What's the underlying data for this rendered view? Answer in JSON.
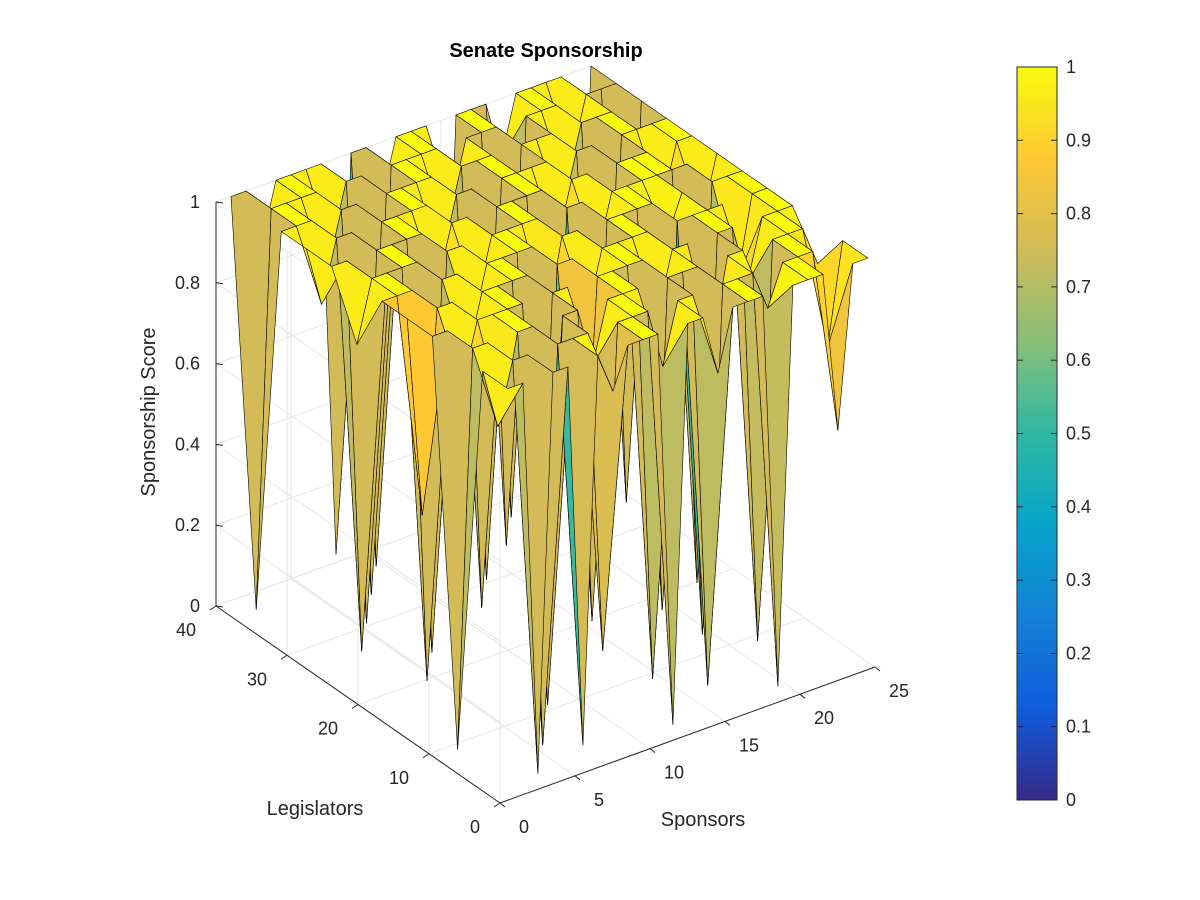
{
  "chart_data": {
    "type": "surface",
    "title": "Senate Sponsorship",
    "xlabel": "Sponsors",
    "ylabel": "Legislators",
    "zlabel": "Sponsorship Score",
    "xlim": [
      0,
      25
    ],
    "ylim": [
      0,
      40
    ],
    "zlim": [
      0,
      1
    ],
    "x_ticks": [
      "0",
      "5",
      "10",
      "15",
      "20",
      "25"
    ],
    "y_ticks": [
      "0",
      "10",
      "20",
      "30",
      "40"
    ],
    "z_ticks": [
      "0",
      "0.2",
      "0.4",
      "0.6",
      "0.8",
      "1"
    ],
    "colorbar_ticks": [
      "0",
      "0.1",
      "0.2",
      "0.3",
      "0.4",
      "0.5",
      "0.6",
      "0.7",
      "0.8",
      "0.9",
      "1"
    ],
    "colormap": "parula",
    "colormap_stops": [
      "#352a87",
      "#0f5cdd",
      "#1481d6",
      "#06a4ca",
      "#2eb7a4",
      "#87bf77",
      "#d1bb59",
      "#fec832",
      "#f9fb0e"
    ],
    "grid": true,
    "surface_rows": [
      [
        1,
        1,
        0.02,
        1,
        1,
        0.05,
        1,
        0.9,
        1,
        1,
        1,
        0.02,
        1,
        1,
        0.85,
        1,
        1,
        1,
        0.02,
        1,
        1,
        1,
        0.6,
        1,
        1
      ],
      [
        1,
        0.85,
        1,
        1,
        0.02,
        1,
        1,
        1,
        0.2,
        1,
        1,
        1,
        0.85,
        1,
        1,
        0.02,
        1,
        1,
        1,
        0.9,
        1,
        1,
        1,
        0.75,
        1
      ],
      [
        0.02,
        1,
        1,
        0.8,
        1,
        1,
        0.05,
        1,
        1,
        0.85,
        1,
        1,
        1,
        0.02,
        1,
        1,
        1,
        0.8,
        1,
        1,
        0.02,
        1,
        1,
        1,
        0.9
      ],
      [
        1,
        1,
        0.85,
        1,
        1,
        1,
        1,
        0.02,
        1,
        1,
        0.35,
        1,
        1,
        1,
        1,
        0.85,
        1,
        1,
        0.02,
        1,
        1,
        0.85,
        1,
        1,
        1
      ],
      [
        1,
        0.5,
        1,
        1,
        0.85,
        1,
        1,
        1,
        1,
        0.02,
        1,
        1,
        0.85,
        1,
        1,
        1,
        1,
        0.05,
        1,
        1,
        1,
        1,
        0.8,
        1,
        1
      ],
      [
        1,
        1,
        1,
        0.02,
        1,
        1,
        0.85,
        1,
        1,
        1,
        1,
        0.8,
        1,
        1,
        0.02,
        1,
        1,
        1,
        1,
        0.9,
        1,
        0.02,
        1,
        1,
        1
      ],
      [
        0.85,
        1,
        1,
        1,
        1,
        0.02,
        1,
        1,
        0.85,
        1,
        1,
        1,
        1,
        0.02,
        1,
        1,
        0.85,
        1,
        1,
        1,
        1,
        1,
        1,
        0.85,
        1
      ],
      [
        1,
        1,
        0.02,
        1,
        1,
        1,
        1,
        0.85,
        1,
        1,
        0.02,
        1,
        1,
        1,
        1,
        0.85,
        1,
        1,
        0.02,
        1,
        1,
        1,
        0.85,
        1,
        1
      ],
      [
        1,
        0.85,
        1,
        1,
        0.02,
        1,
        1,
        1,
        1,
        0.85,
        1,
        1,
        0.02,
        1,
        1,
        1,
        1,
        0.85,
        1,
        1,
        0.02,
        1,
        1,
        1,
        1
      ],
      [
        1,
        1,
        1,
        0.85,
        1,
        1,
        0.02,
        1,
        1,
        1,
        1,
        0.85,
        1,
        1,
        1,
        0.02,
        1,
        1,
        1,
        0.85,
        1,
        1,
        1,
        0.02,
        1
      ],
      [
        0.02,
        1,
        1,
        1,
        1,
        0.85,
        1,
        1,
        0.02,
        1,
        1,
        1,
        1,
        0.85,
        1,
        1,
        1,
        0.02,
        1,
        1,
        1,
        0.85,
        1,
        1,
        1
      ],
      [
        1,
        1,
        0.85,
        1,
        1,
        1,
        1,
        0.02,
        1,
        1,
        0.85,
        1,
        1,
        1,
        0.02,
        1,
        1,
        1,
        0.85,
        1,
        1,
        1,
        1,
        0.02,
        1
      ]
    ]
  }
}
